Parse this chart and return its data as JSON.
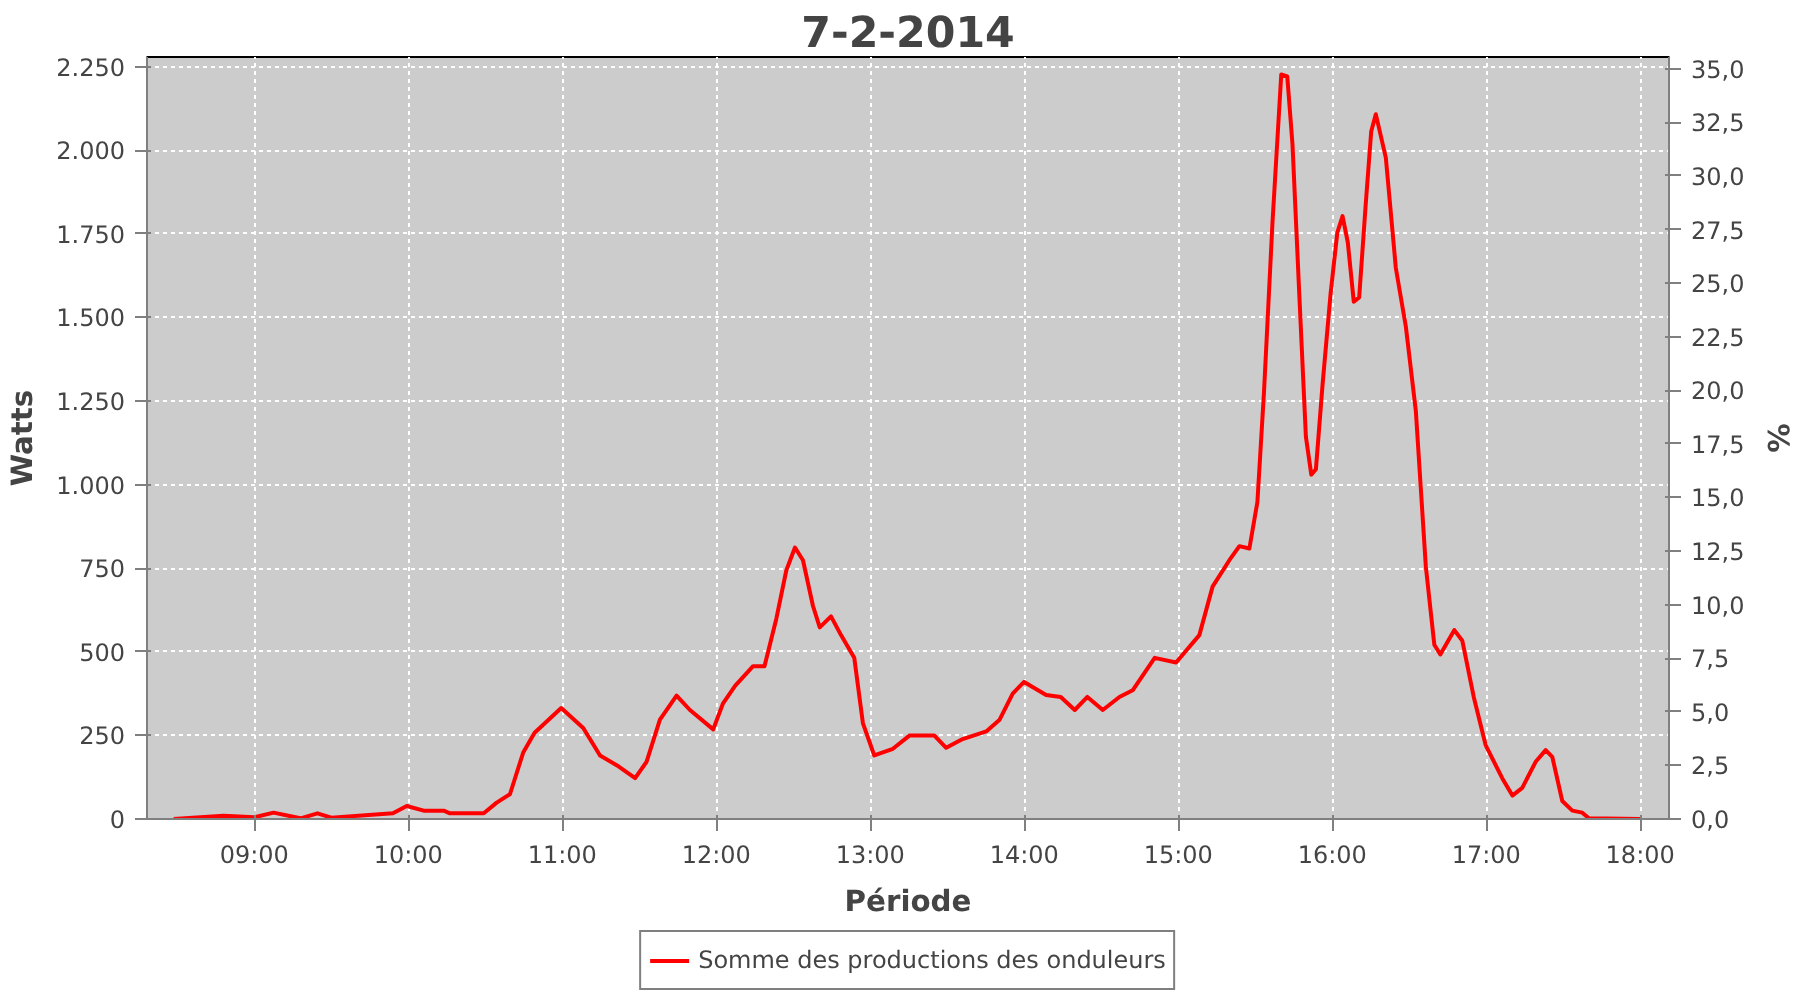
{
  "chart_data": {
    "type": "line",
    "title": "7-2-2014",
    "xlabel": "Période",
    "ylabel": "Watts",
    "y2label": "%",
    "x": [
      8.476,
      8.8,
      9.0,
      9.125,
      9.3,
      9.41,
      9.5,
      9.9,
      9.99,
      10.1,
      10.23,
      10.27,
      10.49,
      10.574,
      10.66,
      10.747,
      10.82,
      10.993,
      11.136,
      11.245,
      11.353,
      11.473,
      11.547,
      11.634,
      11.742,
      11.829,
      11.98,
      12.044,
      12.122,
      12.239,
      12.313,
      12.39,
      12.455,
      12.511,
      12.563,
      12.628,
      12.672,
      12.745,
      12.81,
      12.896,
      12.952,
      13.026,
      13.147,
      13.256,
      13.415,
      13.493,
      13.6,
      13.753,
      13.84,
      13.925,
      13.999,
      14.142,
      14.237,
      14.328,
      14.41,
      14.51,
      14.618,
      14.704,
      14.847,
      14.986,
      15.137,
      15.223,
      15.332,
      15.397,
      15.462,
      15.514,
      15.557,
      15.612,
      15.669,
      15.708,
      15.742,
      15.786,
      15.829,
      15.864,
      15.894,
      15.937,
      15.989,
      16.033,
      16.067,
      16.101,
      16.14,
      16.175,
      16.218,
      16.253,
      16.283,
      16.348,
      16.413,
      16.478,
      16.543,
      16.608,
      16.663,
      16.702,
      16.793,
      16.845,
      16.919,
      16.997,
      17.104,
      17.17,
      17.234,
      17.321,
      17.386,
      17.429,
      17.494,
      17.559,
      17.624,
      17.667,
      18.0
    ],
    "series": [
      {
        "name": "Somme des productions des onduleurs",
        "color": "#ff0000",
        "values": [
          0,
          10,
          5,
          19,
          2,
          17,
          4,
          17,
          39,
          25,
          25,
          17,
          17,
          49,
          74,
          200,
          258,
          332,
          272,
          190,
          161,
          122,
          171,
          297,
          369,
          326,
          268,
          346,
          398,
          457,
          457,
          599,
          744,
          812,
          774,
          637,
          573,
          606,
          550,
          482,
          287,
          190,
          210,
          250,
          250,
          213,
          239,
          262,
          297,
          375,
          410,
          371,
          365,
          326,
          365,
          326,
          365,
          385,
          482,
          468,
          550,
          695,
          774,
          816,
          809,
          948,
          1278,
          1784,
          2227,
          2221,
          2017,
          1570,
          1143,
          1030,
          1046,
          1298,
          1570,
          1754,
          1803,
          1725,
          1547,
          1560,
          1842,
          2056,
          2108,
          1978,
          1648,
          1473,
          1220,
          754,
          521,
          492,
          565,
          533,
          365,
          220,
          122,
          70,
          93,
          171,
          206,
          186,
          54,
          25,
          19,
          2,
          0
        ]
      }
    ],
    "xlim": [
      8.303,
      18.187
    ],
    "xticks": [
      {
        "value": 9,
        "label": "09:00"
      },
      {
        "value": 10,
        "label": "10:00"
      },
      {
        "value": 11,
        "label": "11:00"
      },
      {
        "value": 12,
        "label": "12:00"
      },
      {
        "value": 13,
        "label": "13:00"
      },
      {
        "value": 14,
        "label": "14:00"
      },
      {
        "value": 15,
        "label": "15:00"
      },
      {
        "value": 16,
        "label": "16:00"
      },
      {
        "value": 17,
        "label": "17:00"
      },
      {
        "value": 18,
        "label": "18:00"
      }
    ],
    "ylim": [
      0,
      2279
    ],
    "yticks": [
      0,
      250,
      500,
      750,
      {
        "value": 1000,
        "label": "1.000"
      },
      {
        "value": 1250,
        "label": "1.250"
      },
      {
        "value": 1500,
        "label": "1.500"
      },
      {
        "value": 1750,
        "label": "1.750"
      },
      {
        "value": 2000,
        "label": "2.000"
      },
      {
        "value": 2250,
        "label": "2.250"
      }
    ],
    "y2lim": [
      0,
      35.55
    ],
    "y2ticks": [
      {
        "value": 0,
        "label": "0,0"
      },
      {
        "value": 2.5,
        "label": "2,5"
      },
      {
        "value": 5,
        "label": "5,0"
      },
      {
        "value": 7.5,
        "label": "7,5"
      },
      {
        "value": 10,
        "label": "10,0"
      },
      {
        "value": 12.5,
        "label": "12,5"
      },
      {
        "value": 15,
        "label": "15,0"
      },
      {
        "value": 17.5,
        "label": "17,5"
      },
      {
        "value": 20,
        "label": "20,0"
      },
      {
        "value": 22.5,
        "label": "22,5"
      },
      {
        "value": 25,
        "label": "25,0"
      },
      {
        "value": 27.5,
        "label": "27,5"
      },
      {
        "value": 30,
        "label": "30,0"
      },
      {
        "value": 32.5,
        "label": "32,5"
      },
      {
        "value": 35,
        "label": "35,0"
      }
    ],
    "grid": true,
    "legend": "bottom",
    "line_style": "solid"
  }
}
